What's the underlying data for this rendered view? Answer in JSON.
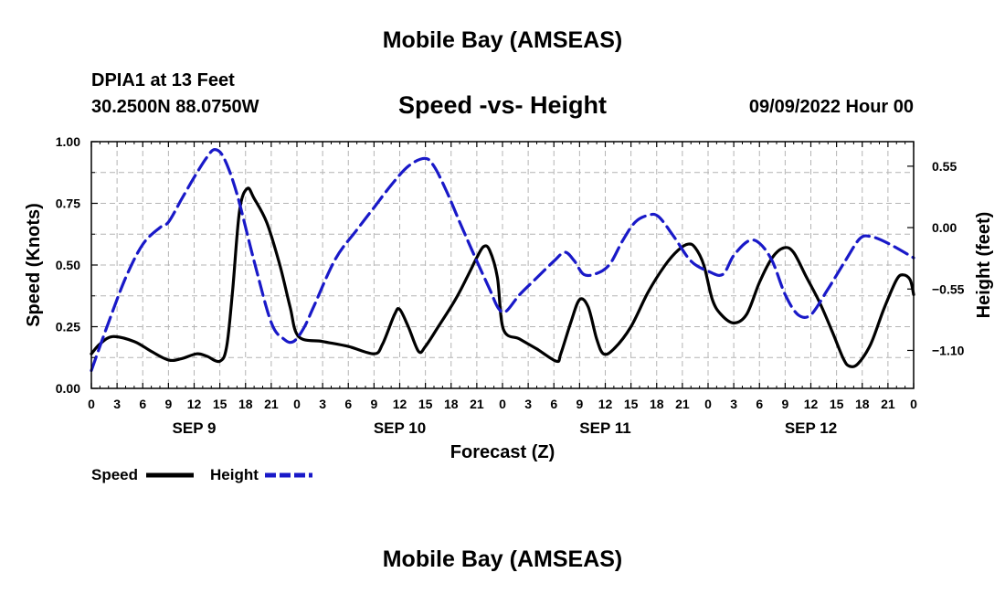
{
  "header": {
    "title": "Mobile Bay (AMSEAS)",
    "station": "DPIA1 at 13 Feet",
    "coords": "30.2500N  88.0750W",
    "subtitle": "Speed -vs- Height",
    "date_hour": "09/09/2022 Hour 00"
  },
  "footer": {
    "title": "Mobile Bay (AMSEAS)"
  },
  "chart_data": {
    "type": "line",
    "xlabel": "Forecast (Z)",
    "ylabel_left": "Speed (Knots)",
    "ylabel_right": "Height (feet)",
    "x_range_hours": [
      0,
      96
    ],
    "ylim_left": [
      0,
      1
    ],
    "ylim_right": [
      -1.44,
      0.77
    ],
    "left_ticks": [
      "0.00",
      "0.25",
      "0.50",
      "0.75",
      "1.00"
    ],
    "left_tick_values": [
      0,
      0.25,
      0.5,
      0.75,
      1.0
    ],
    "right_ticks": [
      "0.55",
      "0.00",
      "−0.55",
      "−1.10"
    ],
    "right_tick_values": [
      0.55,
      0.0,
      -0.55,
      -1.1
    ],
    "x_tick_hours": [
      0,
      3,
      6,
      9,
      12,
      15,
      18,
      21,
      24,
      27,
      30,
      33,
      36,
      39,
      42,
      45,
      48,
      51,
      54,
      57,
      60,
      63,
      66,
      69,
      72,
      75,
      78,
      81,
      84,
      87,
      90,
      93,
      96
    ],
    "x_tick_labels": [
      "0",
      "3",
      "6",
      "9",
      "12",
      "15",
      "18",
      "21",
      "0",
      "3",
      "6",
      "9",
      "12",
      "15",
      "18",
      "21",
      "0",
      "3",
      "6",
      "9",
      "12",
      "15",
      "18",
      "21",
      "0",
      "3",
      "6",
      "9",
      "12",
      "15",
      "18",
      "21",
      "0"
    ],
    "days": [
      {
        "label": "SEP 9",
        "hour": 12
      },
      {
        "label": "SEP 10",
        "hour": 36
      },
      {
        "label": "SEP 11",
        "hour": 60
      },
      {
        "label": "SEP 12",
        "hour": 84
      }
    ],
    "grid": true,
    "legend_position": "bottom-left",
    "series": [
      {
        "name": "Speed",
        "axis": "left",
        "color": "#000000",
        "dash": "solid",
        "points": [
          [
            0,
            0.14
          ],
          [
            1,
            0.18
          ],
          [
            2.5,
            0.21
          ],
          [
            5,
            0.19
          ],
          [
            7,
            0.15
          ],
          [
            9,
            0.115
          ],
          [
            10.5,
            0.12
          ],
          [
            12.3,
            0.14
          ],
          [
            13.5,
            0.13
          ],
          [
            15,
            0.11
          ],
          [
            15.8,
            0.17
          ],
          [
            16.5,
            0.4
          ],
          [
            17.3,
            0.72
          ],
          [
            18.2,
            0.81
          ],
          [
            19,
            0.77
          ],
          [
            20.5,
            0.67
          ],
          [
            22,
            0.5
          ],
          [
            23.2,
            0.33
          ],
          [
            24.2,
            0.21
          ],
          [
            27,
            0.19
          ],
          [
            30,
            0.17
          ],
          [
            33,
            0.14
          ],
          [
            34,
            0.18
          ],
          [
            35.4,
            0.3
          ],
          [
            36,
            0.32
          ],
          [
            37,
            0.25
          ],
          [
            38.2,
            0.15
          ],
          [
            39,
            0.17
          ],
          [
            40.5,
            0.25
          ],
          [
            42.5,
            0.36
          ],
          [
            44,
            0.46
          ],
          [
            45,
            0.53
          ],
          [
            45.8,
            0.575
          ],
          [
            46.5,
            0.56
          ],
          [
            47.4,
            0.45
          ],
          [
            48.1,
            0.24
          ],
          [
            50,
            0.2
          ],
          [
            52,
            0.16
          ],
          [
            54.3,
            0.11
          ],
          [
            54.8,
            0.14
          ],
          [
            56,
            0.27
          ],
          [
            57,
            0.36
          ],
          [
            58,
            0.33
          ],
          [
            59,
            0.2
          ],
          [
            59.8,
            0.14
          ],
          [
            61,
            0.16
          ],
          [
            63,
            0.25
          ],
          [
            65,
            0.39
          ],
          [
            67,
            0.5
          ],
          [
            68.5,
            0.56
          ],
          [
            69.7,
            0.585
          ],
          [
            70.5,
            0.57
          ],
          [
            71.5,
            0.5
          ],
          [
            72.5,
            0.36
          ],
          [
            73.5,
            0.3
          ],
          [
            75,
            0.265
          ],
          [
            76.5,
            0.3
          ],
          [
            78,
            0.43
          ],
          [
            79.5,
            0.53
          ],
          [
            80.9,
            0.57
          ],
          [
            82,
            0.55
          ],
          [
            83.5,
            0.45
          ],
          [
            85,
            0.35
          ],
          [
            86.5,
            0.23
          ],
          [
            87.8,
            0.12
          ],
          [
            88.5,
            0.09
          ],
          [
            89.5,
            0.1
          ],
          [
            91,
            0.18
          ],
          [
            92.5,
            0.32
          ],
          [
            94,
            0.44
          ],
          [
            94.8,
            0.46
          ],
          [
            95.6,
            0.44
          ],
          [
            96,
            0.38
          ]
        ]
      },
      {
        "name": "Height",
        "axis": "right",
        "color": "#1919c8",
        "dash": "dashed",
        "points": [
          [
            0,
            -1.28
          ],
          [
            2,
            -0.85
          ],
          [
            4,
            -0.45
          ],
          [
            6,
            -0.15
          ],
          [
            8,
            0.0
          ],
          [
            9,
            0.05
          ],
          [
            10.5,
            0.25
          ],
          [
            12,
            0.45
          ],
          [
            13.4,
            0.62
          ],
          [
            14.4,
            0.7
          ],
          [
            15.5,
            0.62
          ],
          [
            17,
            0.3
          ],
          [
            19,
            -0.3
          ],
          [
            21,
            -0.85
          ],
          [
            22.5,
            -1.0
          ],
          [
            23.6,
            -1.02
          ],
          [
            24.8,
            -0.9
          ],
          [
            26,
            -0.7
          ],
          [
            28.5,
            -0.28
          ],
          [
            31,
            -0.02
          ],
          [
            33,
            0.18
          ],
          [
            35,
            0.38
          ],
          [
            37,
            0.55
          ],
          [
            38.9,
            0.62
          ],
          [
            40,
            0.55
          ],
          [
            41.5,
            0.32
          ],
          [
            43,
            0.05
          ],
          [
            45,
            -0.3
          ],
          [
            46.5,
            -0.55
          ],
          [
            47.5,
            -0.72
          ],
          [
            48.4,
            -0.75
          ],
          [
            50,
            -0.6
          ],
          [
            52,
            -0.45
          ],
          [
            54,
            -0.3
          ],
          [
            55.3,
            -0.22
          ],
          [
            56.4,
            -0.3
          ],
          [
            57.5,
            -0.42
          ],
          [
            59,
            -0.41
          ],
          [
            60.5,
            -0.33
          ],
          [
            62,
            -0.12
          ],
          [
            63.5,
            0.05
          ],
          [
            65,
            0.11
          ],
          [
            66.2,
            0.1
          ],
          [
            68,
            -0.08
          ],
          [
            70,
            -0.3
          ],
          [
            72,
            -0.39
          ],
          [
            73.7,
            -0.42
          ],
          [
            75,
            -0.25
          ],
          [
            76.7,
            -0.12
          ],
          [
            78,
            -0.14
          ],
          [
            79.5,
            -0.3
          ],
          [
            81,
            -0.6
          ],
          [
            82.5,
            -0.78
          ],
          [
            84,
            -0.78
          ],
          [
            86,
            -0.55
          ],
          [
            88,
            -0.3
          ],
          [
            89.7,
            -0.1
          ],
          [
            91,
            -0.08
          ],
          [
            93,
            -0.14
          ],
          [
            96,
            -0.27
          ]
        ]
      }
    ]
  }
}
